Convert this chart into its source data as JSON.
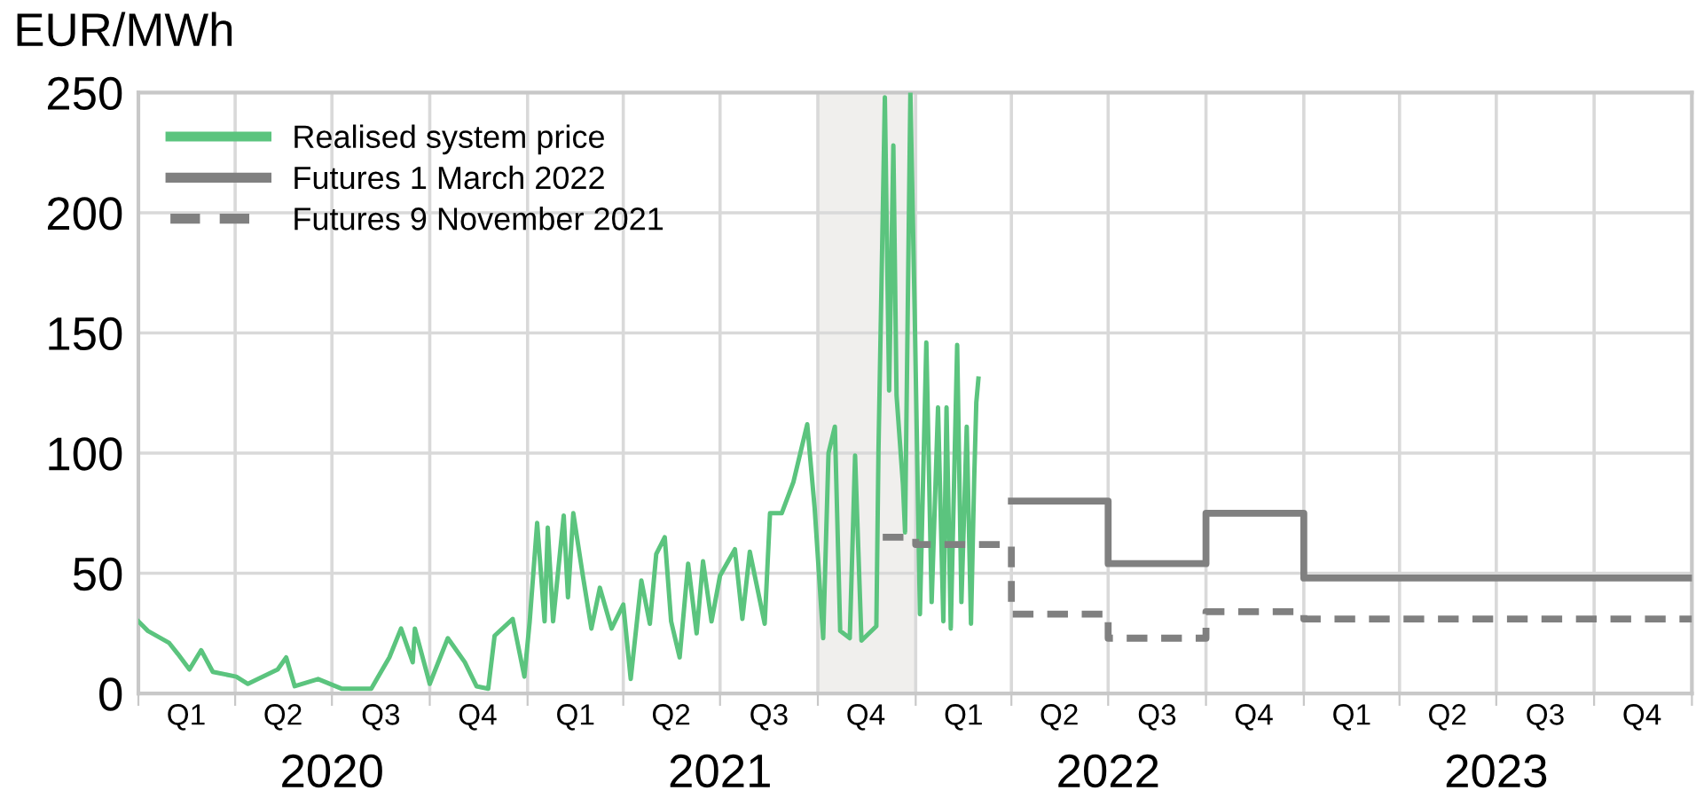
{
  "chart_data": {
    "type": "line",
    "ylabel": "EUR/MWh",
    "xlim": [
      "2020-01-01",
      "2024-01-01"
    ],
    "ylim": [
      0,
      250
    ],
    "yticks": [
      0,
      50,
      100,
      150,
      200,
      250
    ],
    "xticks": [
      {
        "value": "2020-01-01",
        "label": null
      },
      {
        "value": "2020-04-01",
        "label": null
      },
      {
        "value": "2020-07-01",
        "label": null
      },
      {
        "value": "2020-10-01",
        "label": null
      },
      {
        "value": "2021-01-01",
        "label": null
      },
      {
        "value": "2021-04-01",
        "label": null
      },
      {
        "value": "2021-07-01",
        "label": null
      },
      {
        "value": "2021-10-01",
        "label": null
      },
      {
        "value": "2022-01-01",
        "label": null
      },
      {
        "value": "2022-04-01",
        "label": null
      },
      {
        "value": "2022-07-01",
        "label": null
      },
      {
        "value": "2022-10-01",
        "label": null
      },
      {
        "value": "2023-01-01",
        "label": null
      },
      {
        "value": "2023-04-01",
        "label": null
      },
      {
        "value": "2023-07-01",
        "label": null
      },
      {
        "value": "2023-10-01",
        "label": null
      },
      {
        "value": "2024-01-01",
        "label": null
      },
      {
        "value": "2020-02-15",
        "label": "Q1"
      },
      {
        "value": "2020-05-16",
        "label": "Q2"
      },
      {
        "value": "2020-08-16",
        "label": "Q3"
      },
      {
        "value": "2020-11-15",
        "label": "Q4"
      },
      {
        "value": "2021-02-15",
        "label": "Q1"
      },
      {
        "value": "2021-05-16",
        "label": "Q2"
      },
      {
        "value": "2021-08-16",
        "label": "Q3"
      },
      {
        "value": "2021-11-15",
        "label": "Q4"
      },
      {
        "value": "2022-02-15",
        "label": "Q1"
      },
      {
        "value": "2022-05-16",
        "label": "Q2"
      },
      {
        "value": "2022-08-16",
        "label": "Q3"
      },
      {
        "value": "2022-11-15",
        "label": "Q4"
      },
      {
        "value": "2023-02-15",
        "label": "Q1"
      },
      {
        "value": "2023-05-16",
        "label": "Q2"
      },
      {
        "value": "2023-08-16",
        "label": "Q3"
      },
      {
        "value": "2023-11-15",
        "label": "Q4"
      }
    ],
    "x2lim": [
      "2020-01-01",
      "2024-01-01"
    ],
    "x2ticks": [
      {
        "value": "2020-07-01",
        "label": "2020"
      },
      {
        "value": "2021-07-01",
        "label": "2021"
      },
      {
        "value": "2022-07-01",
        "label": "2022"
      },
      {
        "value": "2023-07-01",
        "label": "2023"
      }
    ],
    "grid": true,
    "legend": "top left",
    "marker": "none",
    "bands": [
      {
        "axis": "x",
        "from": "2021-10-01",
        "to": "2022-01-01",
        "color": "#f0efed"
      }
    ],
    "series": [
      {
        "name": "Realised system price",
        "color": "#5bc47e",
        "line_style": "solid",
        "x": [
          "2020-01-01",
          "2020-01-10",
          "2020-01-30",
          "2020-02-07",
          "2020-02-18",
          "2020-02-29",
          "2020-03-11",
          "2020-04-02",
          "2020-04-13",
          "2020-05-11",
          "2020-05-19",
          "2020-05-27",
          "2020-06-18",
          "2020-07-10",
          "2020-08-07",
          "2020-08-24",
          "2020-09-04",
          "2020-09-15",
          "2020-09-17",
          "2020-10-01",
          "2020-10-18",
          "2020-11-03",
          "2020-11-14",
          "2020-11-25",
          "2020-12-01",
          "2020-12-18",
          "2020-12-29",
          "2021-01-03",
          "2021-01-10",
          "2021-01-17",
          "2021-01-20",
          "2021-01-25",
          "2021-02-04",
          "2021-02-08",
          "2021-02-13",
          "2021-02-22",
          "2021-03-02",
          "2021-03-10",
          "2021-03-21",
          "2021-04-01",
          "2021-04-08",
          "2021-04-18",
          "2021-04-26",
          "2021-05-02",
          "2021-05-10",
          "2021-05-16",
          "2021-05-24",
          "2021-06-01",
          "2021-06-09",
          "2021-06-15",
          "2021-06-23",
          "2021-07-01",
          "2021-07-15",
          "2021-07-22",
          "2021-07-29",
          "2021-08-12",
          "2021-08-17",
          "2021-08-28",
          "2021-09-08",
          "2021-09-21",
          "2021-09-28",
          "2021-10-06",
          "2021-10-11",
          "2021-10-17",
          "2021-10-22",
          "2021-10-31",
          "2021-11-05",
          "2021-11-11",
          "2021-11-25",
          "2021-11-27",
          "2021-12-03",
          "2021-12-07",
          "2021-12-11",
          "2021-12-14",
          "2021-12-20",
          "2021-12-22",
          "2021-12-27",
          "2021-12-31",
          "2022-01-05",
          "2022-01-11",
          "2022-01-16",
          "2022-01-22",
          "2022-01-27",
          "2022-01-30",
          "2022-02-03",
          "2022-02-09",
          "2022-02-13",
          "2022-02-18",
          "2022-02-22",
          "2022-02-25",
          "2022-02-27",
          "2022-03-01"
        ],
        "values": [
          30,
          26,
          21,
          16.5,
          10,
          18,
          9,
          7,
          4,
          10,
          15,
          3,
          6,
          2,
          2,
          15,
          27,
          13,
          27,
          4,
          23,
          13,
          3,
          2,
          24,
          31,
          7,
          30,
          71,
          30,
          69,
          30,
          74,
          40,
          75,
          49,
          27,
          44,
          27,
          37,
          6,
          47,
          29,
          58,
          65,
          30,
          15,
          54,
          25,
          55,
          30,
          49,
          60,
          31,
          59,
          29,
          75,
          75,
          88,
          112,
          77,
          23,
          100,
          111,
          26,
          23,
          99,
          22,
          28,
          101,
          248,
          126,
          228,
          124,
          87,
          67,
          250,
          160,
          33,
          146,
          38,
          119,
          30,
          119,
          27,
          145,
          38,
          111,
          29,
          89,
          121,
          131
        ]
      },
      {
        "name": "Futures 1 March 2022",
        "color": "#808080",
        "type": "step",
        "line_style": "solid",
        "x": [
          "2022-04-01",
          "2022-07-01",
          "2022-10-01",
          "2023-01-01",
          "2024-01-01"
        ],
        "values": [
          80,
          54,
          75,
          48,
          48
        ]
      },
      {
        "name": "Futures 9 November 2021",
        "color": "#808080",
        "type": "step",
        "line_style": "dashed",
        "x": [
          "2021-12-01",
          "2022-01-01",
          "2022-04-01",
          "2022-07-01",
          "2022-10-01",
          "2023-01-01",
          "2024-01-01"
        ],
        "values": [
          65,
          62,
          33,
          23,
          34,
          31,
          31
        ]
      }
    ]
  }
}
